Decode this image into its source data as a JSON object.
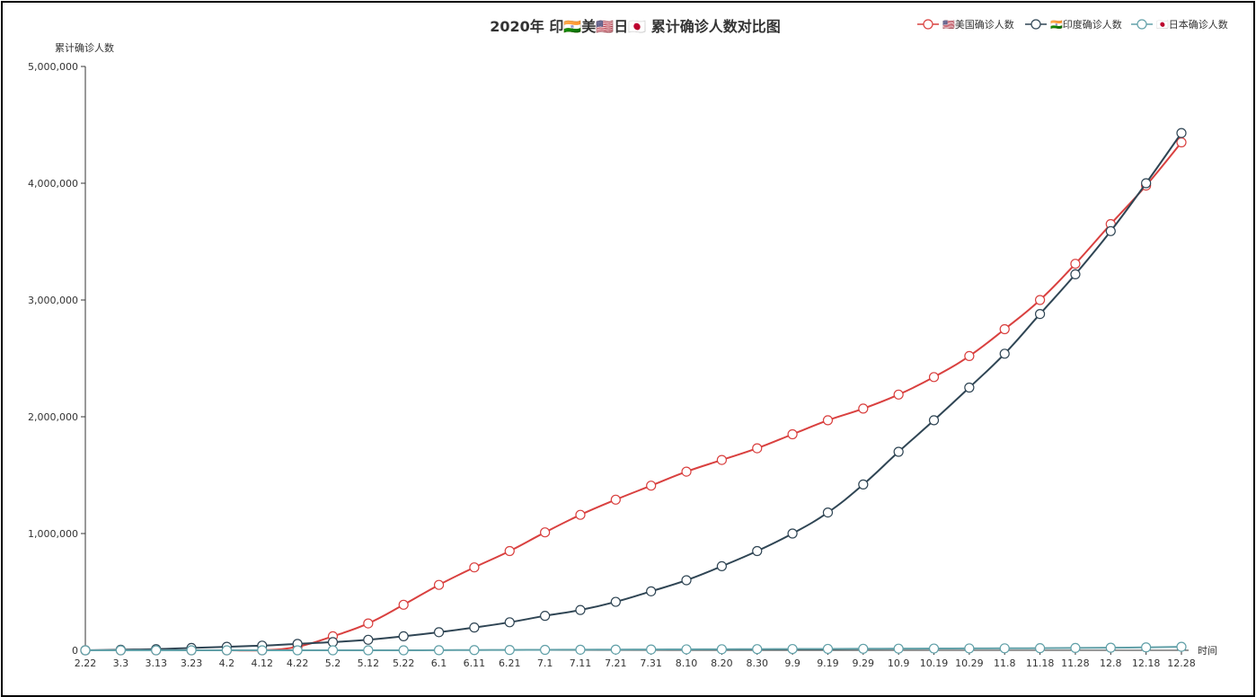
{
  "chart_data": {
    "type": "line",
    "title": "2020年 印🇮🇳美🇺🇸日🇯🇵 累计确诊人数对比图",
    "xlabel": "时间",
    "ylabel": "累计确诊人数",
    "ylim": [
      0,
      5000000
    ],
    "yticks": [
      0,
      1000000,
      2000000,
      3000000,
      4000000,
      5000000
    ],
    "ytick_labels": [
      "0",
      "1,000,000",
      "2,000,000",
      "3,000,000",
      "4,000,000",
      "5,000,000"
    ],
    "categories": [
      "2.22",
      "3.3",
      "3.13",
      "3.23",
      "4.2",
      "4.12",
      "4.22",
      "5.2",
      "5.12",
      "5.22",
      "6.1",
      "6.11",
      "6.21",
      "7.1",
      "7.11",
      "7.21",
      "7.31",
      "8.10",
      "8.20",
      "8.30",
      "9.9",
      "9.19",
      "9.29",
      "10.9",
      "10.19",
      "10.29",
      "11.8",
      "11.18",
      "11.28",
      "12.8",
      "12.18",
      "12.28"
    ],
    "grid": false,
    "legend_position": "top-right",
    "series": [
      {
        "name": "🇺🇸美国确诊人数",
        "color": "#d9403f",
        "values": [
          0,
          0,
          0,
          0,
          0,
          0,
          30000,
          120000,
          230000,
          390000,
          560000,
          710000,
          850000,
          1010000,
          1160000,
          1290000,
          1410000,
          1530000,
          1630000,
          1730000,
          1850000,
          1970000,
          2070000,
          2190000,
          2340000,
          2520000,
          2750000,
          3000000,
          3310000,
          3650000,
          3980000,
          4350000
        ]
      },
      {
        "name": "🇮🇳印度确诊人数",
        "color": "#2f4554",
        "values": [
          0,
          5000,
          10000,
          20000,
          30000,
          40000,
          55000,
          70000,
          90000,
          120000,
          155000,
          195000,
          240000,
          295000,
          345000,
          415000,
          505000,
          600000,
          720000,
          850000,
          1000000,
          1180000,
          1420000,
          1700000,
          1970000,
          2250000,
          2540000,
          2880000,
          3220000,
          3590000,
          4000000,
          4430000
        ]
      },
      {
        "name": "🇯🇵日本确诊人数",
        "color": "#61a0a8",
        "values": [
          0,
          0,
          0,
          0,
          0,
          0,
          0,
          0,
          0,
          0,
          1000,
          2000,
          3000,
          4000,
          5000,
          6000,
          7000,
          8000,
          9000,
          10000,
          11000,
          12000,
          13000,
          14000,
          15000,
          16000,
          17000,
          18000,
          20000,
          22000,
          25000,
          30000
        ]
      }
    ]
  }
}
